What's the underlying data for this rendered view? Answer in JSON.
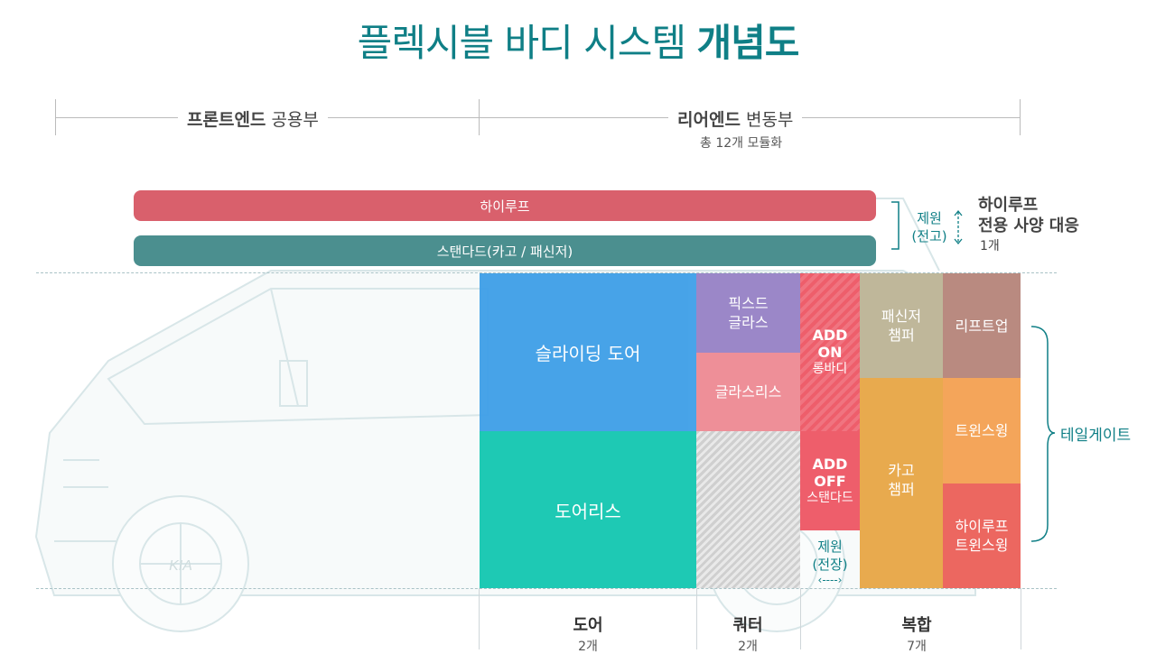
{
  "title": {
    "normal": "플렉시블 바디 시스템",
    "bold": "개념도"
  },
  "header": {
    "front": {
      "bold": "프론트엔드",
      "normal": "공용부"
    },
    "rear": {
      "bold": "리어엔드",
      "normal": "변동부",
      "sub": "총 12개 모듈화"
    }
  },
  "bars": {
    "hiroof": "하이루프",
    "standard": "스탠다드(카고 / 패신저)"
  },
  "roof_note": {
    "jewon_line1": "제원",
    "jewon_line2": "(전고)",
    "side_line1": "하이루프",
    "side_line2": "전용 사양 대응",
    "side_count": "1개"
  },
  "modules": {
    "sliding_door": "슬라이딩 도어",
    "doorless": "도어리스",
    "fixed_glass_l1": "픽스드",
    "fixed_glass_l2": "글라스",
    "glassless": "글라스리스",
    "addon_l1": "ADD",
    "addon_l2": "ON",
    "addon_l3": "롱바디",
    "addoff_l1": "ADD",
    "addoff_l2": "OFF",
    "addoff_l3": "스탠다드",
    "jewon_len_l1": "제원",
    "jewon_len_l2": "(전장)",
    "jewon_len_arrow": "‹----›",
    "passenger_l1": "패신저",
    "passenger_l2": "챔퍼",
    "cargo_l1": "카고",
    "cargo_l2": "챔퍼",
    "liftup": "리프트업",
    "twinswing": "트윈스윙",
    "hiroof_twin_l1": "하이루프",
    "hiroof_twin_l2": "트윈스윙",
    "tailgate": "테일게이트"
  },
  "bottom": {
    "door": {
      "label": "도어",
      "count": "2개"
    },
    "quarter": {
      "label": "쿼터",
      "count": "2개"
    },
    "complex": {
      "label": "복합",
      "count": "7개"
    }
  },
  "vehicle_logo": "KIA",
  "colors": {
    "title": "#0f7f86",
    "hiroof_bar": "#d9606c",
    "standard_bar": "#4b8f8f",
    "sliding_door": "#3e9fe8",
    "doorless": "#1ec9b4",
    "fixed_glass": "#9b87c8",
    "glassless": "#ee8f98",
    "quarter_hatch": "#c8c8c8",
    "addon": "#ee5e6b",
    "passenger_chamfer": "#bfb79a",
    "cargo_chamfer": "#e8aa4e",
    "liftup": "#b98a80",
    "twinswing": "#f4a55a",
    "hiroof_twinswing": "#ec6760"
  }
}
